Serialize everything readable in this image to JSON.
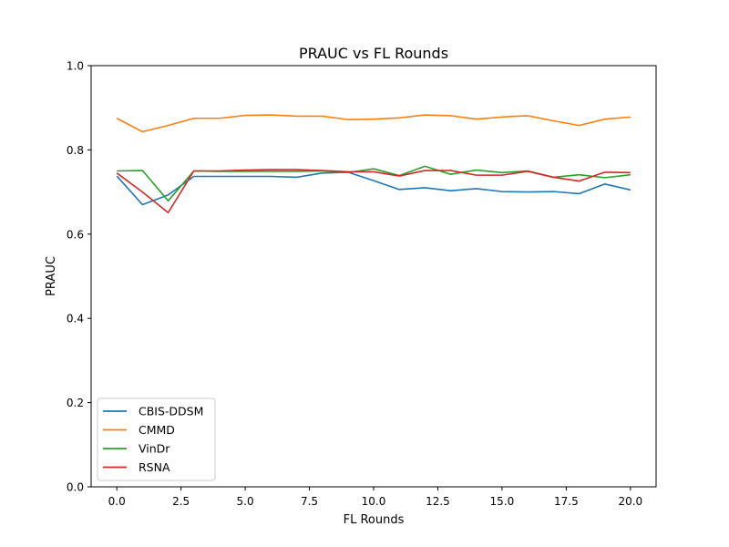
{
  "chart_data": {
    "type": "line",
    "title": "PRAUC vs FL Rounds",
    "xlabel": "FL Rounds",
    "ylabel": "PRAUC",
    "xlim": [
      -1,
      21
    ],
    "ylim": [
      0,
      1
    ],
    "xticks": [
      0,
      2.5,
      5,
      7.5,
      10,
      12.5,
      15,
      17.5,
      20
    ],
    "xtick_labels": [
      "0.0",
      "2.5",
      "5.0",
      "7.5",
      "10.0",
      "12.5",
      "15.0",
      "17.5",
      "20.0"
    ],
    "yticks": [
      0,
      0.2,
      0.4,
      0.6,
      0.8,
      1.0
    ],
    "ytick_labels": [
      "0.0",
      "0.2",
      "0.4",
      "0.6",
      "0.8",
      "1.0"
    ],
    "grid": false,
    "legend_position": "lower-left",
    "x": [
      0,
      1,
      2,
      3,
      4,
      5,
      6,
      7,
      8,
      9,
      10,
      11,
      12,
      13,
      14,
      15,
      16,
      17,
      18,
      19,
      20
    ],
    "series": [
      {
        "name": "CBIS-DDSM",
        "color": "#1f77b4",
        "values": [
          0.738,
          0.67,
          0.693,
          0.737,
          0.737,
          0.737,
          0.737,
          0.735,
          0.745,
          0.747,
          0.727,
          0.706,
          0.71,
          0.703,
          0.708,
          0.701,
          0.7,
          0.701,
          0.696,
          0.719,
          0.705
        ]
      },
      {
        "name": "CMMD",
        "color": "#ff7f0e",
        "values": [
          0.875,
          0.843,
          0.858,
          0.875,
          0.875,
          0.882,
          0.883,
          0.88,
          0.88,
          0.872,
          0.873,
          0.876,
          0.883,
          0.881,
          0.873,
          0.878,
          0.881,
          0.869,
          0.858,
          0.873,
          0.878
        ]
      },
      {
        "name": "VinDr",
        "color": "#2ca02c",
        "values": [
          0.75,
          0.751,
          0.679,
          0.75,
          0.749,
          0.749,
          0.749,
          0.749,
          0.75,
          0.746,
          0.755,
          0.739,
          0.761,
          0.742,
          0.752,
          0.746,
          0.75,
          0.735,
          0.741,
          0.734,
          0.741
        ]
      },
      {
        "name": "RSNA",
        "color": "#d62728",
        "values": [
          0.745,
          0.7,
          0.651,
          0.75,
          0.75,
          0.752,
          0.753,
          0.753,
          0.751,
          0.748,
          0.748,
          0.738,
          0.751,
          0.751,
          0.74,
          0.74,
          0.749,
          0.735,
          0.726,
          0.747,
          0.746
        ]
      }
    ]
  }
}
